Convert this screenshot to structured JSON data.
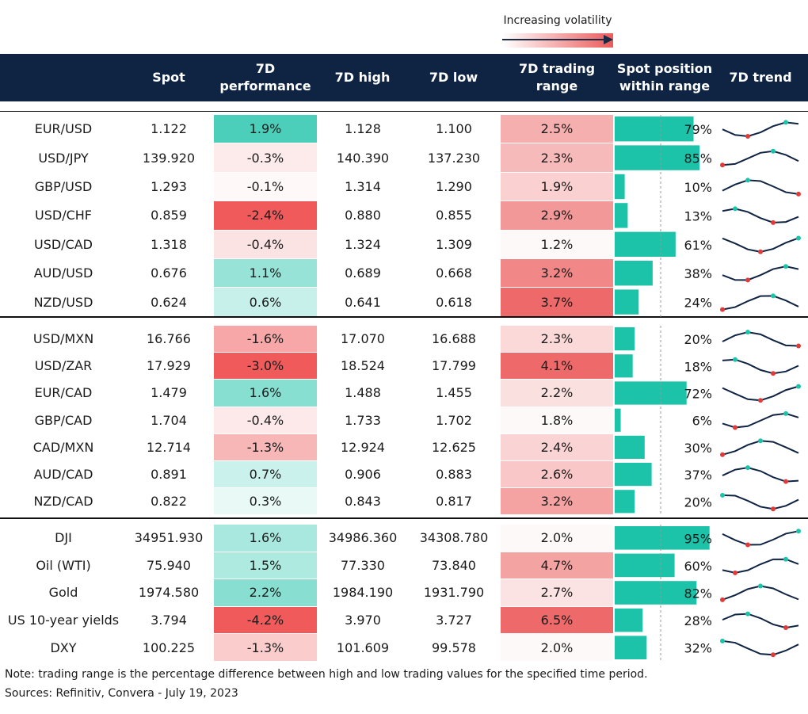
{
  "header": {
    "legend": "Increasing volatility",
    "columns": [
      "Spot",
      "7D performance",
      "7D high",
      "7D low",
      "7D trading range",
      "Spot position within range",
      "7D trend"
    ]
  },
  "groups": [
    {
      "rows": [
        {
          "name": "EUR/USD",
          "spot": "1.122",
          "perf": "1.9%",
          "high": "1.128",
          "low": "1.100",
          "range": "2.5%",
          "position": "79%"
        },
        {
          "name": "USD/JPY",
          "spot": "139.920",
          "perf": "-0.3%",
          "high": "140.390",
          "low": "137.230",
          "range": "2.3%",
          "position": "85%"
        },
        {
          "name": "GBP/USD",
          "spot": "1.293",
          "perf": "-0.1%",
          "high": "1.314",
          "low": "1.290",
          "range": "1.9%",
          "position": "10%"
        },
        {
          "name": "USD/CHF",
          "spot": "0.859",
          "perf": "-2.4%",
          "high": "0.880",
          "low": "0.855",
          "range": "2.9%",
          "position": "13%"
        },
        {
          "name": "USD/CAD",
          "spot": "1.318",
          "perf": "-0.4%",
          "high": "1.324",
          "low": "1.309",
          "range": "1.2%",
          "position": "61%"
        },
        {
          "name": "AUD/USD",
          "spot": "0.676",
          "perf": "1.1%",
          "high": "0.689",
          "low": "0.668",
          "range": "3.2%",
          "position": "38%"
        },
        {
          "name": "NZD/USD",
          "spot": "0.624",
          "perf": "0.6%",
          "high": "0.641",
          "low": "0.618",
          "range": "3.7%",
          "position": "24%"
        }
      ]
    },
    {
      "rows": [
        {
          "name": "USD/MXN",
          "spot": "16.766",
          "perf": "-1.6%",
          "high": "17.070",
          "low": "16.688",
          "range": "2.3%",
          "position": "20%"
        },
        {
          "name": "USD/ZAR",
          "spot": "17.929",
          "perf": "-3.0%",
          "high": "18.524",
          "low": "17.799",
          "range": "4.1%",
          "position": "18%"
        },
        {
          "name": "EUR/CAD",
          "spot": "1.479",
          "perf": "1.6%",
          "high": "1.488",
          "low": "1.455",
          "range": "2.2%",
          "position": "72%"
        },
        {
          "name": "GBP/CAD",
          "spot": "1.704",
          "perf": "-0.4%",
          "high": "1.733",
          "low": "1.702",
          "range": "1.8%",
          "position": "6%"
        },
        {
          "name": "CAD/MXN",
          "spot": "12.714",
          "perf": "-1.3%",
          "high": "12.924",
          "low": "12.625",
          "range": "2.4%",
          "position": "30%"
        },
        {
          "name": "AUD/CAD",
          "spot": "0.891",
          "perf": "0.7%",
          "high": "0.906",
          "low": "0.883",
          "range": "2.6%",
          "position": "37%"
        },
        {
          "name": "NZD/CAD",
          "spot": "0.822",
          "perf": "0.3%",
          "high": "0.843",
          "low": "0.817",
          "range": "3.2%",
          "position": "20%"
        }
      ]
    },
    {
      "rows": [
        {
          "name": "DJI",
          "spot": "34951.930",
          "perf": "1.6%",
          "high": "34986.360",
          "low": "34308.780",
          "range": "2.0%",
          "position": "95%"
        },
        {
          "name": "Oil (WTI)",
          "spot": "75.940",
          "perf": "1.5%",
          "high": "77.330",
          "low": "73.840",
          "range": "4.7%",
          "position": "60%"
        },
        {
          "name": "Gold",
          "spot": "1974.580",
          "perf": "2.2%",
          "high": "1984.190",
          "low": "1931.790",
          "range": "2.7%",
          "position": "82%"
        },
        {
          "name": "US 10-year yields",
          "spot": "3.794",
          "perf": "-4.2%",
          "high": "3.970",
          "low": "3.727",
          "range": "6.5%",
          "position": "28%"
        },
        {
          "name": "DXY",
          "spot": "100.225",
          "perf": "-1.3%",
          "high": "101.609",
          "low": "99.578",
          "range": "2.0%",
          "position": "32%"
        }
      ]
    }
  ],
  "footer": {
    "note": "Note: trading range is the percentage difference between high and low trading values for the specified time period.",
    "sources": "Sources: Refinitiv, Convera - July 19, 2023"
  }
}
